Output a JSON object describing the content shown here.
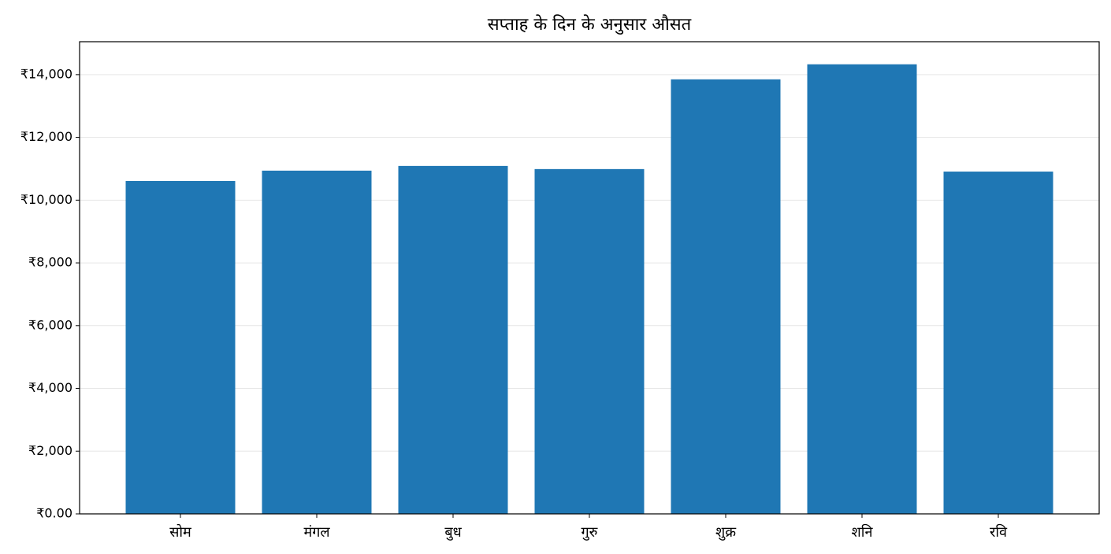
{
  "chart_data": {
    "type": "bar",
    "title": "सप्ताह के दिन के अनुसार औसत",
    "categories": [
      "सोम",
      "मंगल",
      "बुध",
      "गुरु",
      "शुक्र",
      "शनि",
      "रवि"
    ],
    "values": [
      10610,
      10940,
      11090,
      10990,
      13850,
      14330,
      10910
    ],
    "color": "#1f77b4",
    "ylim": [
      0,
      15050
    ],
    "yticks": [
      {
        "value": 0,
        "label": "₹0.00"
      },
      {
        "value": 2000,
        "label": "₹2,000"
      },
      {
        "value": 4000,
        "label": "₹4,000"
      },
      {
        "value": 6000,
        "label": "₹6,000"
      },
      {
        "value": 8000,
        "label": "₹8,000"
      },
      {
        "value": 10000,
        "label": "₹10,000"
      },
      {
        "value": 12000,
        "label": "₹12,000"
      },
      {
        "value": 14000,
        "label": "₹14,000"
      }
    ],
    "grid": true
  }
}
